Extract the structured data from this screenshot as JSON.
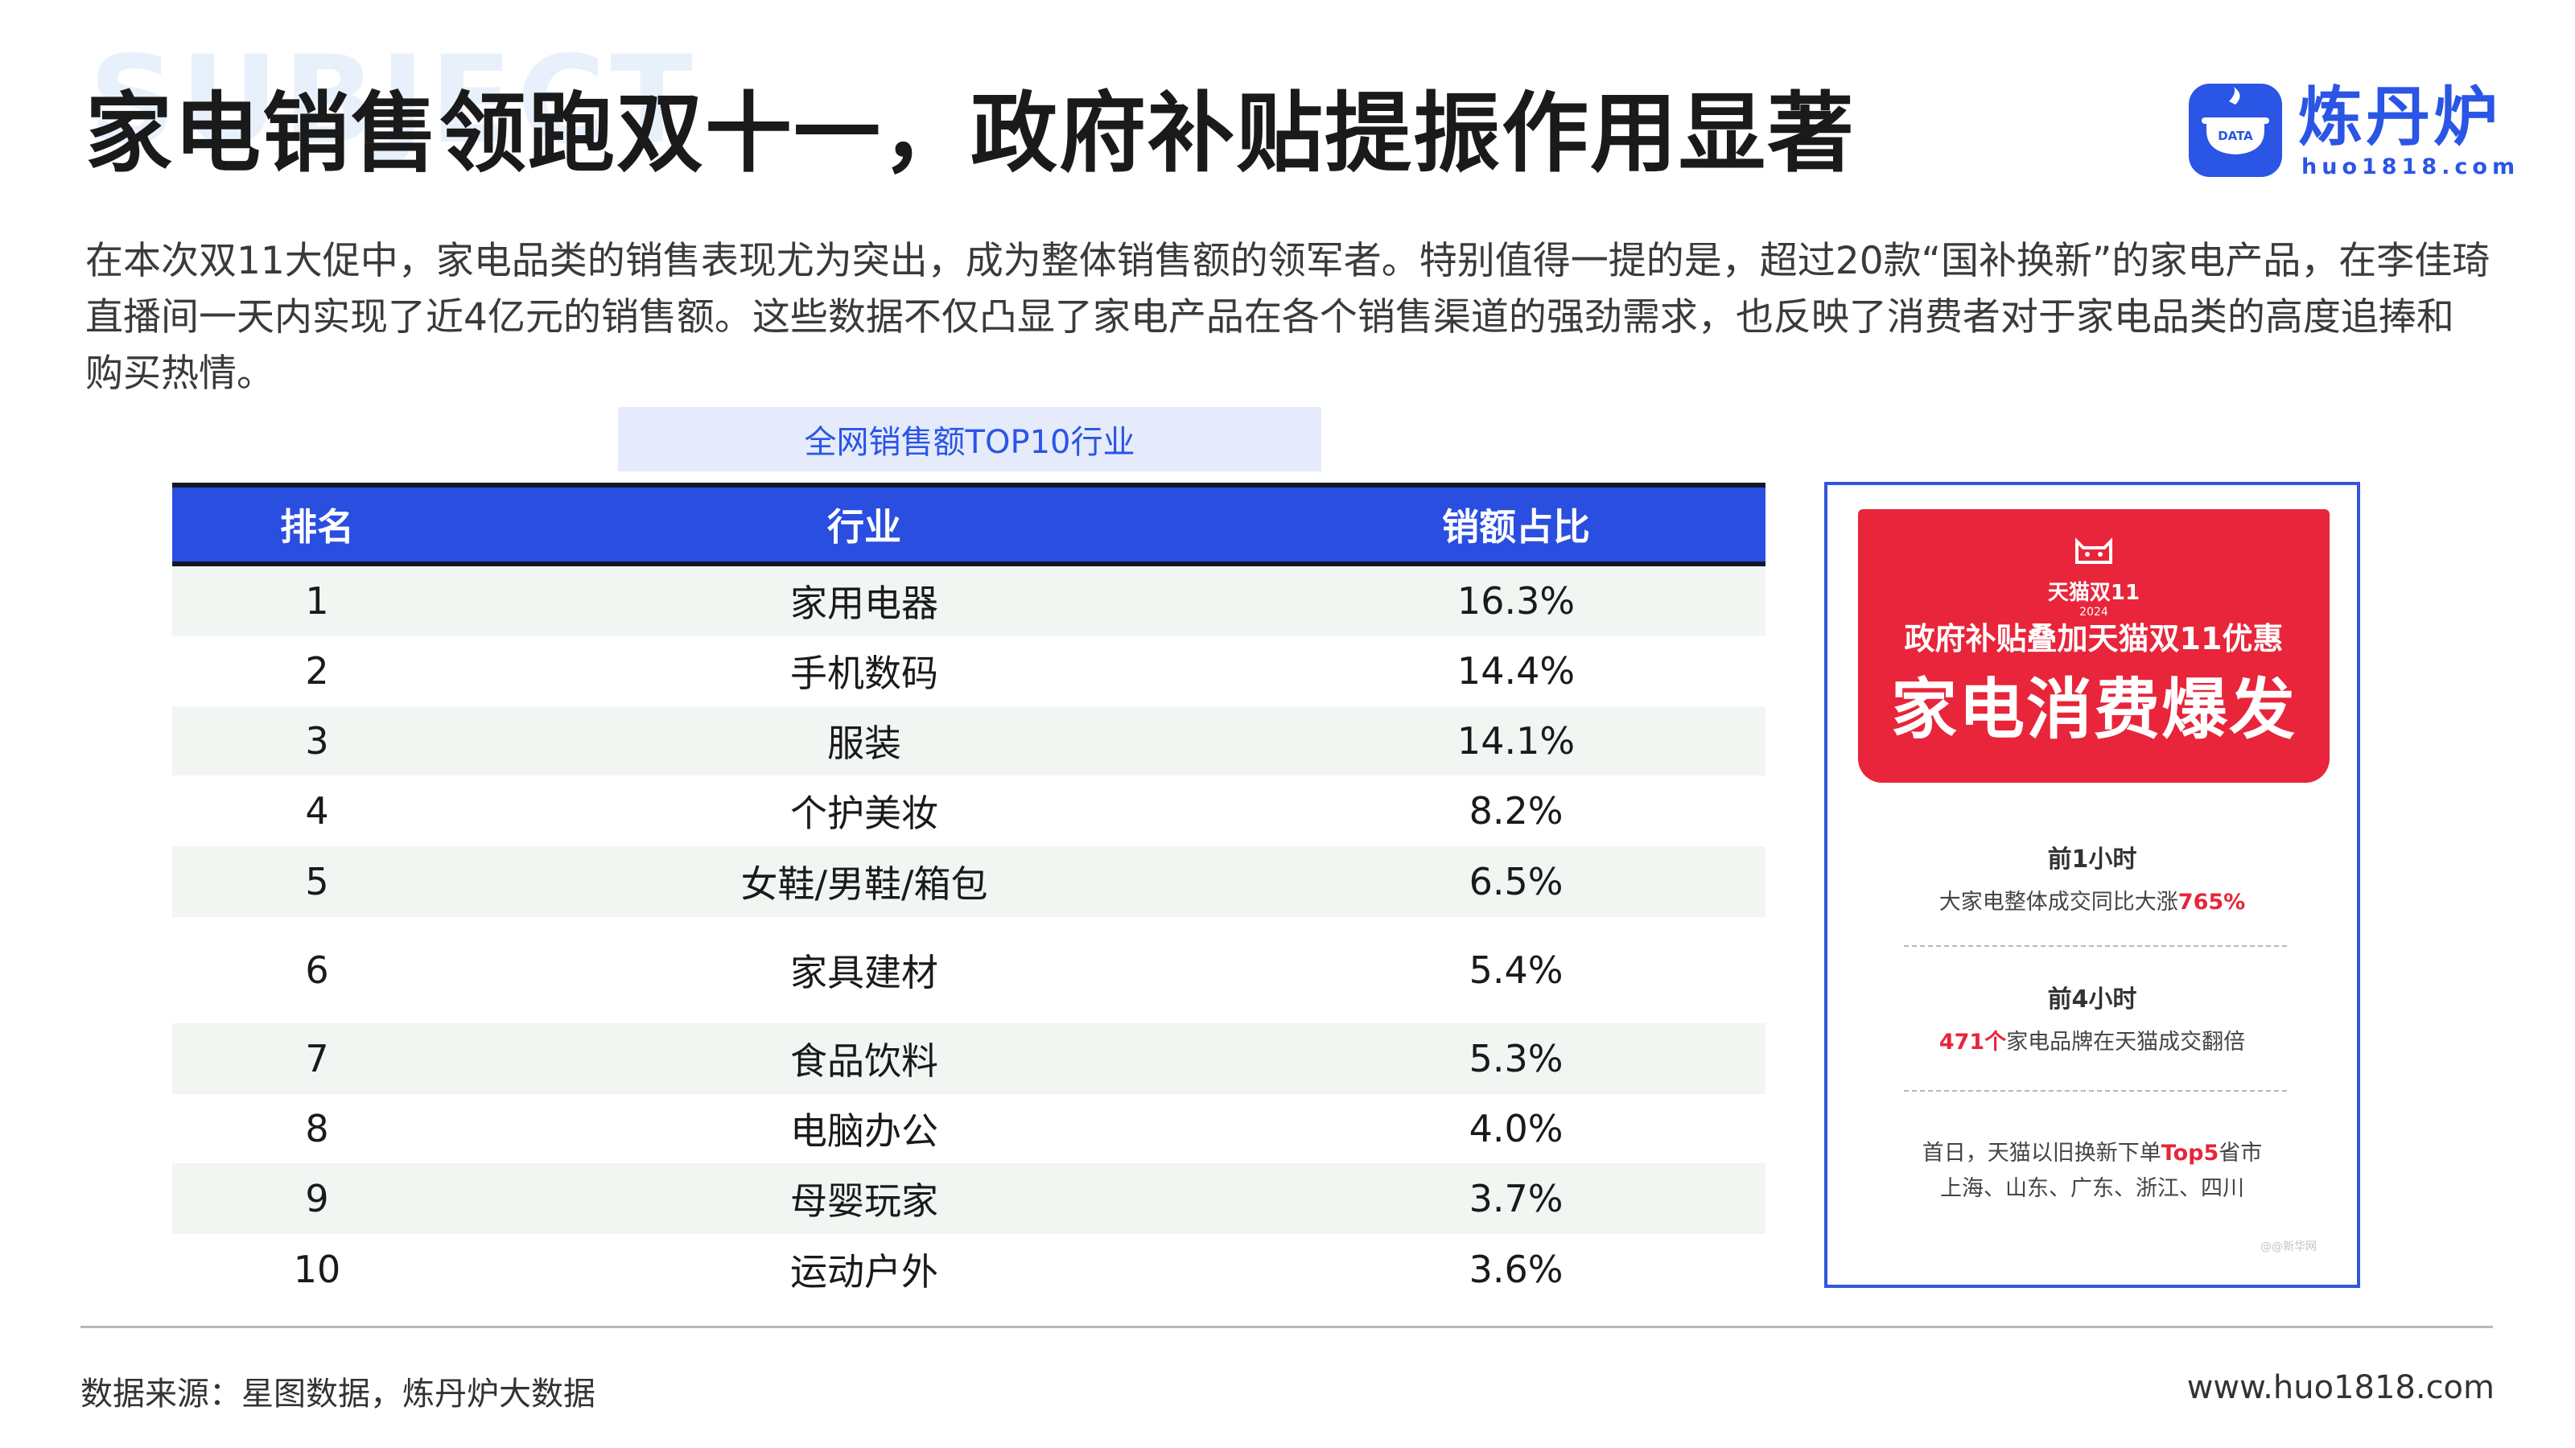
{
  "header": {
    "bg_word": "SUBJECT",
    "title": "家电销售领跑双十一，政府补贴提振作用显著"
  },
  "logo": {
    "icon": "data-pot-icon",
    "badge_text": "DATA",
    "name": "炼丹炉",
    "url": "huo1818.com"
  },
  "intro": "在本次双11大促中，家电品类的销售表现尤为突出，成为整体销售额的领军者。特别值得一提的是，超过20款“国补换新”的家电产品，在李佳琦直播间一天内实现了近4亿元的销售额。这些数据不仅凸显了家电产品在各个销售渠道的强劲需求，也反映了消费者对于家电品类的高度追捧和购买热情。",
  "table": {
    "caption": "全网销售额TOP10行业",
    "headers": [
      "排名",
      "行业",
      "销额占比"
    ],
    "rows": [
      [
        "1",
        "家用电器",
        "16.3%"
      ],
      [
        "2",
        "手机数码",
        "14.4%"
      ],
      [
        "3",
        "服装",
        "14.1%"
      ],
      [
        "4",
        "个护美妆",
        "8.2%"
      ],
      [
        "5",
        "女鞋/男鞋/箱包",
        "6.5%"
      ],
      [
        "6",
        "家具建材",
        "5.4%"
      ],
      [
        "7",
        "食品饮料",
        "5.3%"
      ],
      [
        "8",
        "电脑办公",
        "4.0%"
      ],
      [
        "9",
        "母婴玩家",
        "3.7%"
      ],
      [
        "10",
        "运动户外",
        "3.6%"
      ]
    ]
  },
  "promo": {
    "tag": "天猫双11",
    "tag_year": "2024",
    "subtitle": "政府补贴叠加天猫双11优惠",
    "headline": "家电消费爆发",
    "stat1_title": "前1小时",
    "stat1_text": "大家电整体成交同比大涨",
    "stat1_value": "765%",
    "stat2_title": "前4小时",
    "stat2_value": "471个",
    "stat2_text": "家电品牌在天猫成交翻倍",
    "stat3_line1_prefix": "首日，天猫以旧换新下单",
    "stat3_line1_highlight": "Top5",
    "stat3_line1_suffix": "省市",
    "stat3_line2": "上海、山东、广东、浙江、四川",
    "footnote": "@@新华网"
  },
  "footer": {
    "source": "数据来源：星图数据，炼丹炉大数据",
    "site": "www.huo1818.com"
  },
  "colors": {
    "accent_blue": "#2a4ee0",
    "highlight_red": "#e8253a",
    "row_alt": "#f1f6f2",
    "caption_bg": "#e5ebfb"
  }
}
